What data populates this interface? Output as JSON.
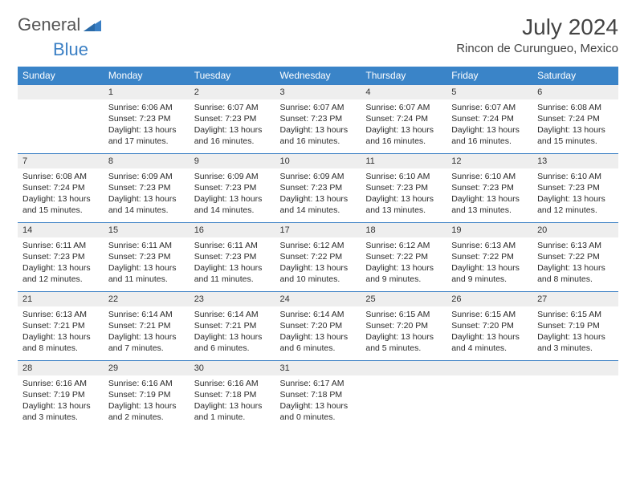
{
  "logo": {
    "word1": "General",
    "word2": "Blue"
  },
  "title": "July 2024",
  "location": "Rincon de Curungueo, Mexico",
  "weekdays": [
    "Sunday",
    "Monday",
    "Tuesday",
    "Wednesday",
    "Thursday",
    "Friday",
    "Saturday"
  ],
  "colors": {
    "header_bg": "#3a84c8",
    "header_text": "#ffffff",
    "daynum_bg": "#eeeeee",
    "rule": "#3a7fc4",
    "logo_blue": "#3a7fc4",
    "text": "#2a2a2a"
  },
  "layout": {
    "cols": 7,
    "rows": 5,
    "first_weekday_offset": 1,
    "days_in_month": 31
  },
  "days": {
    "1": {
      "sunrise": "6:06 AM",
      "sunset": "7:23 PM",
      "daylight": "13 hours and 17 minutes."
    },
    "2": {
      "sunrise": "6:07 AM",
      "sunset": "7:23 PM",
      "daylight": "13 hours and 16 minutes."
    },
    "3": {
      "sunrise": "6:07 AM",
      "sunset": "7:23 PM",
      "daylight": "13 hours and 16 minutes."
    },
    "4": {
      "sunrise": "6:07 AM",
      "sunset": "7:24 PM",
      "daylight": "13 hours and 16 minutes."
    },
    "5": {
      "sunrise": "6:07 AM",
      "sunset": "7:24 PM",
      "daylight": "13 hours and 16 minutes."
    },
    "6": {
      "sunrise": "6:08 AM",
      "sunset": "7:24 PM",
      "daylight": "13 hours and 15 minutes."
    },
    "7": {
      "sunrise": "6:08 AM",
      "sunset": "7:24 PM",
      "daylight": "13 hours and 15 minutes."
    },
    "8": {
      "sunrise": "6:09 AM",
      "sunset": "7:23 PM",
      "daylight": "13 hours and 14 minutes."
    },
    "9": {
      "sunrise": "6:09 AM",
      "sunset": "7:23 PM",
      "daylight": "13 hours and 14 minutes."
    },
    "10": {
      "sunrise": "6:09 AM",
      "sunset": "7:23 PM",
      "daylight": "13 hours and 14 minutes."
    },
    "11": {
      "sunrise": "6:10 AM",
      "sunset": "7:23 PM",
      "daylight": "13 hours and 13 minutes."
    },
    "12": {
      "sunrise": "6:10 AM",
      "sunset": "7:23 PM",
      "daylight": "13 hours and 13 minutes."
    },
    "13": {
      "sunrise": "6:10 AM",
      "sunset": "7:23 PM",
      "daylight": "13 hours and 12 minutes."
    },
    "14": {
      "sunrise": "6:11 AM",
      "sunset": "7:23 PM",
      "daylight": "13 hours and 12 minutes."
    },
    "15": {
      "sunrise": "6:11 AM",
      "sunset": "7:23 PM",
      "daylight": "13 hours and 11 minutes."
    },
    "16": {
      "sunrise": "6:11 AM",
      "sunset": "7:23 PM",
      "daylight": "13 hours and 11 minutes."
    },
    "17": {
      "sunrise": "6:12 AM",
      "sunset": "7:22 PM",
      "daylight": "13 hours and 10 minutes."
    },
    "18": {
      "sunrise": "6:12 AM",
      "sunset": "7:22 PM",
      "daylight": "13 hours and 9 minutes."
    },
    "19": {
      "sunrise": "6:13 AM",
      "sunset": "7:22 PM",
      "daylight": "13 hours and 9 minutes."
    },
    "20": {
      "sunrise": "6:13 AM",
      "sunset": "7:22 PM",
      "daylight": "13 hours and 8 minutes."
    },
    "21": {
      "sunrise": "6:13 AM",
      "sunset": "7:21 PM",
      "daylight": "13 hours and 8 minutes."
    },
    "22": {
      "sunrise": "6:14 AM",
      "sunset": "7:21 PM",
      "daylight": "13 hours and 7 minutes."
    },
    "23": {
      "sunrise": "6:14 AM",
      "sunset": "7:21 PM",
      "daylight": "13 hours and 6 minutes."
    },
    "24": {
      "sunrise": "6:14 AM",
      "sunset": "7:20 PM",
      "daylight": "13 hours and 6 minutes."
    },
    "25": {
      "sunrise": "6:15 AM",
      "sunset": "7:20 PM",
      "daylight": "13 hours and 5 minutes."
    },
    "26": {
      "sunrise": "6:15 AM",
      "sunset": "7:20 PM",
      "daylight": "13 hours and 4 minutes."
    },
    "27": {
      "sunrise": "6:15 AM",
      "sunset": "7:19 PM",
      "daylight": "13 hours and 3 minutes."
    },
    "28": {
      "sunrise": "6:16 AM",
      "sunset": "7:19 PM",
      "daylight": "13 hours and 3 minutes."
    },
    "29": {
      "sunrise": "6:16 AM",
      "sunset": "7:19 PM",
      "daylight": "13 hours and 2 minutes."
    },
    "30": {
      "sunrise": "6:16 AM",
      "sunset": "7:18 PM",
      "daylight": "13 hours and 1 minute."
    },
    "31": {
      "sunrise": "6:17 AM",
      "sunset": "7:18 PM",
      "daylight": "13 hours and 0 minutes."
    }
  },
  "labels": {
    "sunrise": "Sunrise:",
    "sunset": "Sunset:",
    "daylight": "Daylight:"
  }
}
